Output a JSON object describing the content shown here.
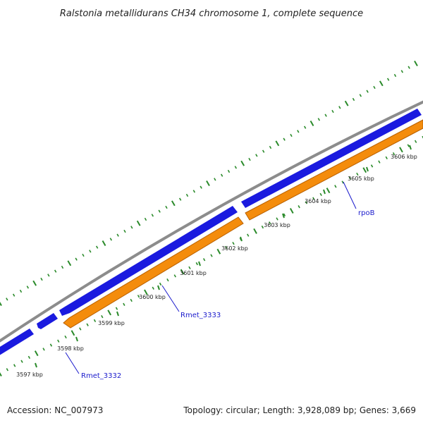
{
  "title": "Ralstonia metallidurans CH34 chromosome 1, complete sequence",
  "footer": {
    "accession": "Accession: NC_007973",
    "summary": "Topology: circular; Length: 3,928,089 bp; Genes: 3,669"
  },
  "colors": {
    "backbone": "#8c8c8c",
    "forward_strand": "#1a1adf",
    "reverse_strand": "#f48c0c",
    "gc_ticks": "#2a8a2a",
    "label_line": "#1a1acc",
    "label_text": "#1a1acc"
  },
  "ticks": [
    {
      "label": "3597 kbp"
    },
    {
      "label": "3598 kbp"
    },
    {
      "label": "3599 kbp"
    },
    {
      "label": "3600 kbp"
    },
    {
      "label": "3601 kbp"
    },
    {
      "label": "3602 kbp"
    },
    {
      "label": "3603 kbp"
    },
    {
      "label": "3604 kbp"
    },
    {
      "label": "3605 kbp"
    },
    {
      "label": "3606 kbp"
    }
  ],
  "genes": [
    {
      "name": "Rmet_3332",
      "strand": "forward"
    },
    {
      "name": "Rmet_3333",
      "strand": "reverse"
    },
    {
      "name": "rpoB",
      "strand": "reverse"
    }
  ]
}
